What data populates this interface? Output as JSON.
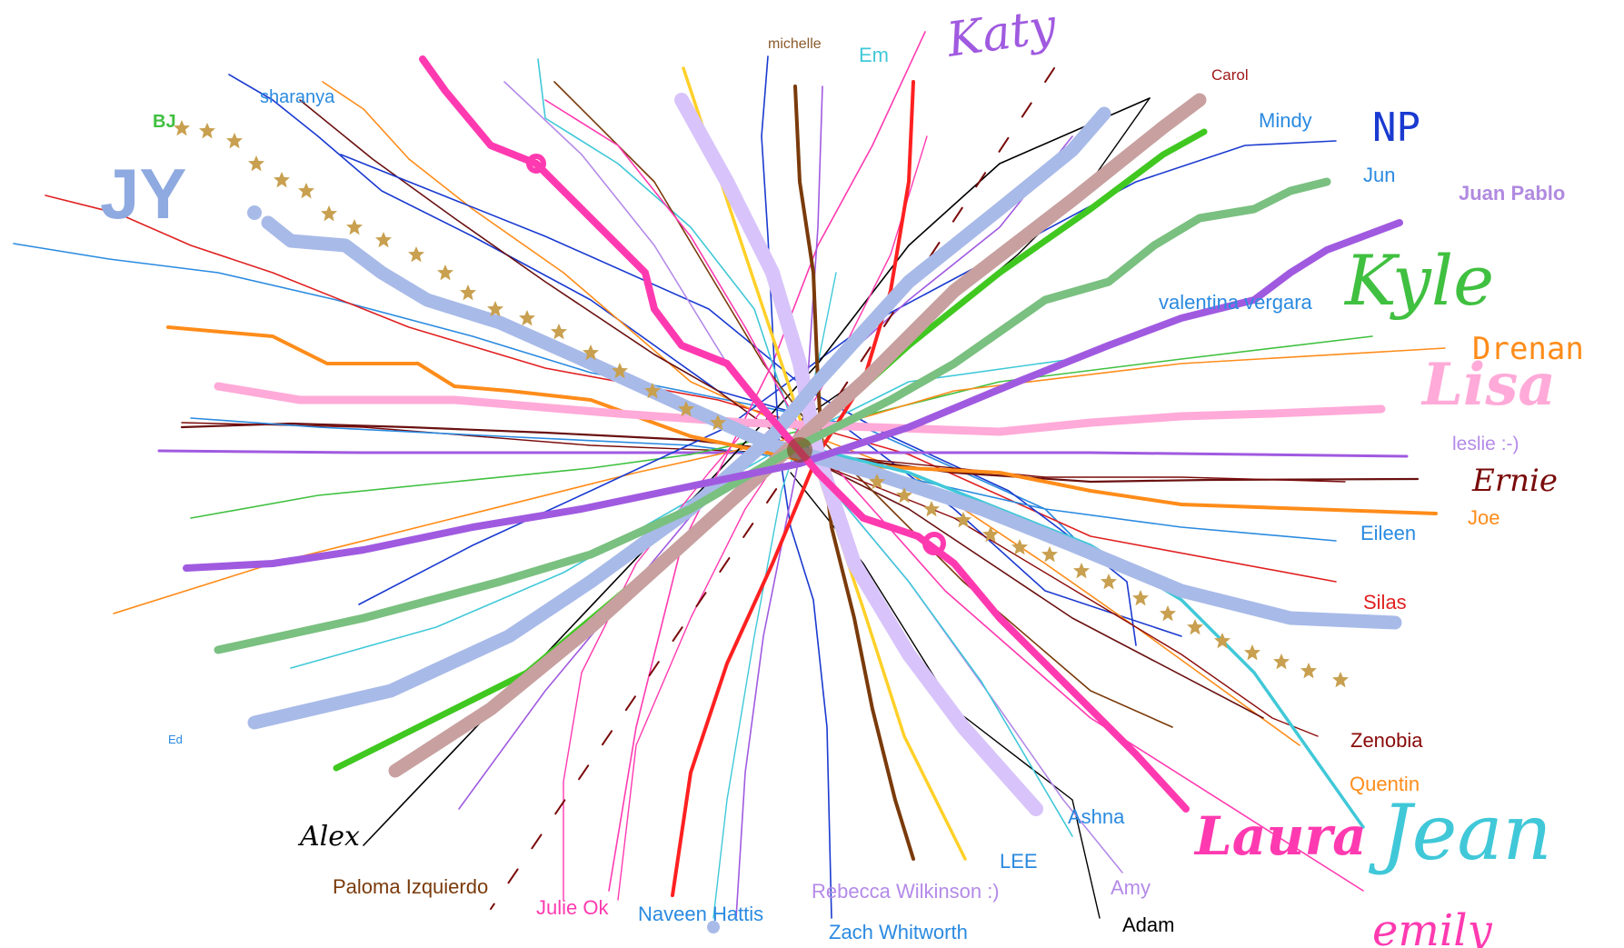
{
  "canvas": {
    "background": "#ffffff",
    "labels": [
      {
        "text": "michelle",
        "color": "#8b5a2b"
      },
      {
        "text": "Em",
        "color": "#40c8d8"
      },
      {
        "text": "Katy",
        "color": "#a05ae0"
      },
      {
        "text": "Carol",
        "color": "#a01818"
      },
      {
        "text": "Mindy",
        "color": "#2a8ae0"
      },
      {
        "text": "NP",
        "color": "#1a3ad0"
      },
      {
        "text": "Jun",
        "color": "#2a8ae0"
      },
      {
        "text": "Juan Pablo",
        "color": "#a05ae0"
      },
      {
        "text": "Kyle",
        "color": "#40c040"
      },
      {
        "text": "valentina vergara",
        "color": "#2a8ae0"
      },
      {
        "text": "Drenan",
        "color": "#ff8c1a"
      },
      {
        "text": "Lisa",
        "color": "#ffaad8"
      },
      {
        "text": "leslie :-)",
        "color": "#b48ae8"
      },
      {
        "text": "Ernie",
        "color": "#7a0a0a"
      },
      {
        "text": "Joe",
        "color": "#ff8c1a"
      },
      {
        "text": "Eileen",
        "color": "#2a8ae0"
      },
      {
        "text": "Silas",
        "color": "#e02020"
      },
      {
        "text": "Zenobia",
        "color": "#8b0a0a"
      },
      {
        "text": "Quentin",
        "color": "#ff8c1a"
      },
      {
        "text": "Jean",
        "color": "#40c8d8"
      },
      {
        "text": "Laura",
        "color": "#ff3ab0"
      },
      {
        "text": "Ashna",
        "color": "#2a8ae0"
      },
      {
        "text": "Amy",
        "color": "#b48ae8"
      },
      {
        "text": "Adam",
        "color": "#000000"
      },
      {
        "text": "LEE",
        "color": "#2a8ae0"
      },
      {
        "text": "Rebecca Wilkinson :)",
        "color": "#b48ae8"
      },
      {
        "text": "Zach Whitworth",
        "color": "#2a8ae0"
      },
      {
        "text": "Naveen Hattis",
        "color": "#2a8ae0"
      },
      {
        "text": "Julie Ok",
        "color": "#ff3ab0"
      },
      {
        "text": "Paloma Izquierdo",
        "color": "#7a3a0a"
      },
      {
        "text": "Alex",
        "color": "#000000"
      },
      {
        "text": "Ed",
        "color": "#2a8ae0"
      },
      {
        "text": "sharanya",
        "color": "#2a8ae0"
      },
      {
        "text": "BJ",
        "color": "#40c040"
      },
      {
        "text": "JY",
        "color": "#8faae0"
      },
      {
        "text": "emily",
        "color": "#ff3ab0"
      }
    ]
  }
}
